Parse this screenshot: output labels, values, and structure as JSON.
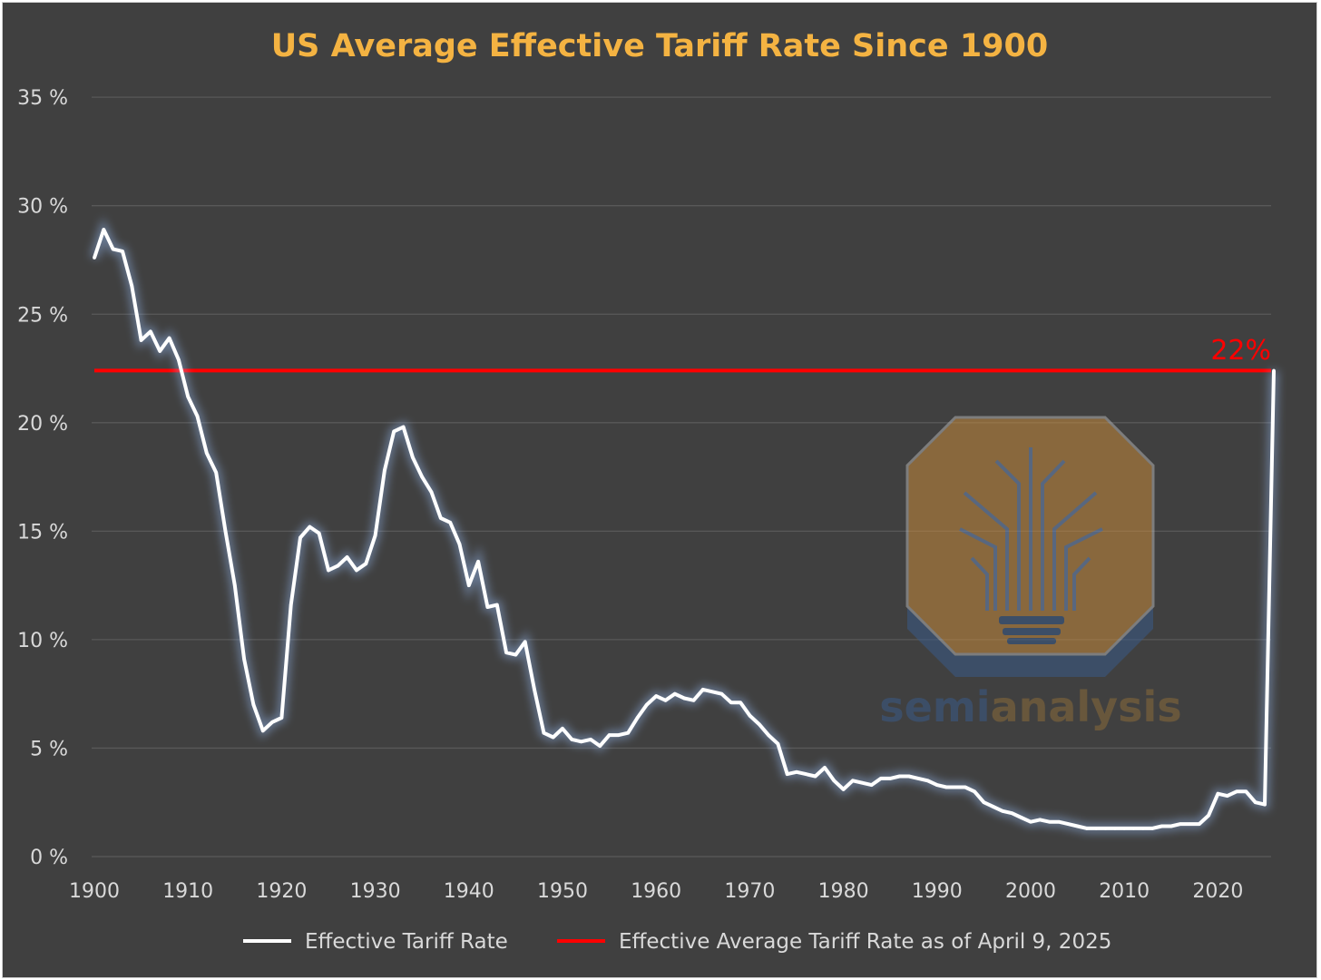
{
  "chart_data": {
    "type": "line",
    "title": "US Average Effective Tariff Rate Since 1900",
    "xlabel": "",
    "ylabel": "",
    "xlim": [
      1900,
      2026
    ],
    "ylim": [
      0,
      35
    ],
    "grid": true,
    "legend_position": "bottom",
    "y_ticks": [
      0,
      5,
      10,
      15,
      20,
      25,
      30,
      35
    ],
    "y_tick_labels": [
      "0 %",
      "5 %",
      "10 %",
      "15 %",
      "20 %",
      "25 %",
      "30 %",
      "35 %"
    ],
    "x_ticks": [
      1900,
      1910,
      1920,
      1930,
      1940,
      1950,
      1960,
      1970,
      1980,
      1990,
      2000,
      2010,
      2020
    ],
    "x_tick_labels": [
      "1900",
      "1910",
      "1920",
      "1930",
      "1940",
      "1950",
      "1960",
      "1970",
      "1980",
      "1990",
      "2000",
      "2010",
      "2020"
    ],
    "series": [
      {
        "name": "Effective Tariff Rate",
        "color": "#ffffff",
        "x": [
          1900,
          1901,
          1902,
          1903,
          1904,
          1905,
          1906,
          1907,
          1908,
          1909,
          1910,
          1911,
          1912,
          1913,
          1914,
          1915,
          1916,
          1917,
          1918,
          1919,
          1920,
          1921,
          1922,
          1923,
          1924,
          1925,
          1926,
          1927,
          1928,
          1929,
          1930,
          1931,
          1932,
          1933,
          1934,
          1935,
          1936,
          1937,
          1938,
          1939,
          1940,
          1941,
          1942,
          1943,
          1944,
          1945,
          1946,
          1947,
          1948,
          1949,
          1950,
          1951,
          1952,
          1953,
          1954,
          1955,
          1956,
          1957,
          1958,
          1959,
          1960,
          1961,
          1962,
          1963,
          1964,
          1965,
          1966,
          1967,
          1968,
          1969,
          1970,
          1971,
          1972,
          1973,
          1974,
          1975,
          1976,
          1977,
          1978,
          1979,
          1980,
          1981,
          1982,
          1983,
          1984,
          1985,
          1986,
          1987,
          1988,
          1989,
          1990,
          1991,
          1992,
          1993,
          1994,
          1995,
          1996,
          1997,
          1998,
          1999,
          2000,
          2001,
          2002,
          2003,
          2004,
          2005,
          2006,
          2007,
          2008,
          2009,
          2010,
          2011,
          2012,
          2013,
          2014,
          2015,
          2016,
          2017,
          2018,
          2019,
          2020,
          2021,
          2022,
          2023,
          2024,
          2025
        ],
        "values": [
          27.6,
          28.9,
          28.0,
          27.9,
          26.3,
          23.8,
          24.2,
          23.3,
          23.9,
          22.9,
          21.2,
          20.3,
          18.6,
          17.7,
          15.0,
          12.5,
          9.1,
          7.0,
          5.8,
          6.2,
          6.4,
          11.6,
          14.7,
          15.2,
          14.9,
          13.2,
          13.4,
          13.8,
          13.2,
          13.5,
          14.8,
          17.8,
          19.6,
          19.8,
          18.4,
          17.5,
          16.8,
          15.6,
          15.4,
          14.4,
          12.5,
          13.6,
          11.5,
          11.6,
          9.4,
          9.3,
          9.9,
          7.7,
          5.7,
          5.5,
          5.9,
          5.4,
          5.3,
          5.4,
          5.1,
          5.6,
          5.6,
          5.7,
          6.4,
          7.0,
          7.4,
          7.2,
          7.5,
          7.3,
          7.2,
          7.7,
          7.6,
          7.5,
          7.1,
          7.1,
          6.5,
          6.1,
          5.6,
          5.2,
          3.8,
          3.9,
          3.8,
          3.7,
          4.1,
          3.5,
          3.1,
          3.5,
          3.4,
          3.3,
          3.6,
          3.6,
          3.7,
          3.7,
          3.6,
          3.5,
          3.3,
          3.2,
          3.2,
          3.2,
          3.0,
          2.5,
          2.3,
          2.1,
          2.0,
          1.8,
          1.6,
          1.7,
          1.6,
          1.6,
          1.5,
          1.4,
          1.3,
          1.3,
          1.3,
          1.3,
          1.3,
          1.3,
          1.3,
          1.3,
          1.4,
          1.4,
          1.5,
          1.5,
          1.5,
          1.9,
          2.9,
          2.8,
          3.0,
          3.0,
          2.5,
          2.4
        ]
      },
      {
        "name": "Effective Average Tariff Rate as of April 9, 2025",
        "color": "#ff0000",
        "value": 22.4,
        "annotation": "22%"
      }
    ],
    "final_point": {
      "year": 2025,
      "value": 22.4
    },
    "watermark": "semianalysis"
  }
}
